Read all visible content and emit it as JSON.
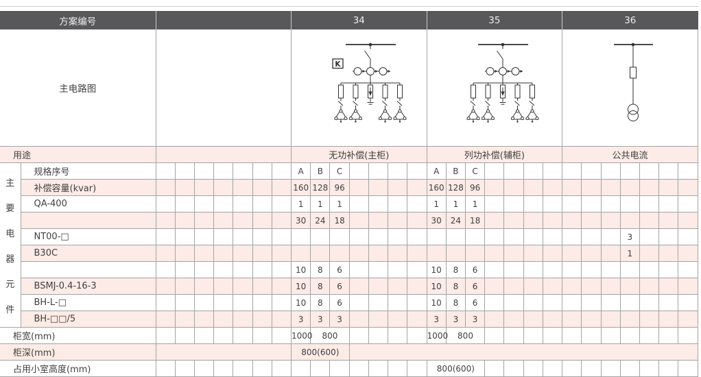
{
  "header": {
    "scheme_no_label": "方案编号",
    "scheme_34": "34",
    "scheme_35": "35",
    "scheme_36": "36"
  },
  "circuit": {
    "label": "主电路图",
    "k_marker": "K"
  },
  "usage": {
    "label": "用途",
    "col34": "无功补偿(主柜)",
    "col35": "列功补偿(辅柜)",
    "col36": "公共电流"
  },
  "side_label_chars": [
    "主",
    "要",
    "电",
    "器",
    "元",
    "件"
  ],
  "body_rows": [
    {
      "label": "规格序号",
      "pink": false,
      "label_colspan": 1,
      "cells": [
        [
          1,
          ""
        ],
        [
          1,
          ""
        ],
        [
          1,
          ""
        ],
        [
          1,
          ""
        ],
        [
          1,
          ""
        ],
        [
          1,
          ""
        ],
        [
          1,
          ""
        ],
        [
          1,
          "A"
        ],
        [
          1,
          "B"
        ],
        [
          1,
          "C"
        ],
        [
          1,
          ""
        ],
        [
          1,
          ""
        ],
        [
          1,
          ""
        ],
        [
          1,
          ""
        ],
        [
          1,
          "A"
        ],
        [
          1,
          "B"
        ],
        [
          1,
          "C"
        ],
        [
          1,
          ""
        ],
        [
          1,
          ""
        ],
        [
          1,
          ""
        ],
        [
          1,
          ""
        ],
        [
          1,
          ""
        ],
        [
          1,
          ""
        ],
        [
          1,
          ""
        ],
        [
          1,
          ""
        ],
        [
          1,
          ""
        ],
        [
          1,
          ""
        ],
        [
          1,
          ""
        ]
      ]
    },
    {
      "label": "补偿容量(kvar)",
      "pink": true,
      "label_colspan": 1,
      "cells": [
        [
          1,
          ""
        ],
        [
          1,
          ""
        ],
        [
          1,
          ""
        ],
        [
          1,
          ""
        ],
        [
          1,
          ""
        ],
        [
          1,
          ""
        ],
        [
          1,
          ""
        ],
        [
          1,
          "160"
        ],
        [
          1,
          "128"
        ],
        [
          1,
          "96"
        ],
        [
          1,
          ""
        ],
        [
          1,
          ""
        ],
        [
          1,
          ""
        ],
        [
          1,
          ""
        ],
        [
          1,
          "160"
        ],
        [
          1,
          "128"
        ],
        [
          1,
          "96"
        ],
        [
          1,
          ""
        ],
        [
          1,
          ""
        ],
        [
          1,
          ""
        ],
        [
          1,
          ""
        ],
        [
          1,
          ""
        ],
        [
          1,
          ""
        ],
        [
          1,
          ""
        ],
        [
          1,
          ""
        ],
        [
          1,
          ""
        ],
        [
          1,
          ""
        ],
        [
          1,
          ""
        ]
      ]
    },
    {
      "label": "QA-400",
      "pink": false,
      "label_colspan": 1,
      "cells": [
        [
          1,
          ""
        ],
        [
          1,
          ""
        ],
        [
          1,
          ""
        ],
        [
          1,
          ""
        ],
        [
          1,
          ""
        ],
        [
          1,
          ""
        ],
        [
          1,
          ""
        ],
        [
          1,
          "1"
        ],
        [
          1,
          "1"
        ],
        [
          1,
          "1"
        ],
        [
          1,
          ""
        ],
        [
          1,
          ""
        ],
        [
          1,
          ""
        ],
        [
          1,
          ""
        ],
        [
          1,
          "1"
        ],
        [
          1,
          "1"
        ],
        [
          1,
          "1"
        ],
        [
          1,
          ""
        ],
        [
          1,
          ""
        ],
        [
          1,
          ""
        ],
        [
          1,
          ""
        ],
        [
          1,
          ""
        ],
        [
          1,
          ""
        ],
        [
          1,
          ""
        ],
        [
          1,
          ""
        ],
        [
          1,
          ""
        ],
        [
          1,
          ""
        ],
        [
          1,
          ""
        ]
      ]
    },
    {
      "label": "",
      "pink": true,
      "label_colspan": 1,
      "cells": [
        [
          1,
          ""
        ],
        [
          1,
          ""
        ],
        [
          1,
          ""
        ],
        [
          1,
          ""
        ],
        [
          1,
          ""
        ],
        [
          1,
          ""
        ],
        [
          1,
          ""
        ],
        [
          1,
          "30"
        ],
        [
          1,
          "24"
        ],
        [
          1,
          "18"
        ],
        [
          1,
          ""
        ],
        [
          1,
          ""
        ],
        [
          1,
          ""
        ],
        [
          1,
          ""
        ],
        [
          1,
          "30"
        ],
        [
          1,
          "24"
        ],
        [
          1,
          "18"
        ],
        [
          1,
          ""
        ],
        [
          1,
          ""
        ],
        [
          1,
          ""
        ],
        [
          1,
          ""
        ],
        [
          1,
          ""
        ],
        [
          1,
          ""
        ],
        [
          1,
          ""
        ],
        [
          1,
          ""
        ],
        [
          1,
          ""
        ],
        [
          1,
          ""
        ],
        [
          1,
          ""
        ]
      ]
    },
    {
      "label": "NT00-□",
      "pink": false,
      "label_colspan": 1,
      "cells": [
        [
          1,
          ""
        ],
        [
          1,
          ""
        ],
        [
          1,
          ""
        ],
        [
          1,
          ""
        ],
        [
          1,
          ""
        ],
        [
          1,
          ""
        ],
        [
          1,
          ""
        ],
        [
          1,
          ""
        ],
        [
          1,
          ""
        ],
        [
          1,
          ""
        ],
        [
          1,
          ""
        ],
        [
          1,
          ""
        ],
        [
          1,
          ""
        ],
        [
          1,
          ""
        ],
        [
          1,
          ""
        ],
        [
          1,
          ""
        ],
        [
          1,
          ""
        ],
        [
          1,
          ""
        ],
        [
          1,
          ""
        ],
        [
          1,
          ""
        ],
        [
          1,
          ""
        ],
        [
          1,
          ""
        ],
        [
          1,
          ""
        ],
        [
          1,
          ""
        ],
        [
          1,
          "3"
        ],
        [
          1,
          ""
        ],
        [
          1,
          ""
        ],
        [
          1,
          ""
        ]
      ]
    },
    {
      "label": "B30C",
      "pink": true,
      "label_colspan": 1,
      "cells": [
        [
          1,
          ""
        ],
        [
          1,
          ""
        ],
        [
          1,
          ""
        ],
        [
          1,
          ""
        ],
        [
          1,
          ""
        ],
        [
          1,
          ""
        ],
        [
          1,
          ""
        ],
        [
          1,
          ""
        ],
        [
          1,
          ""
        ],
        [
          1,
          ""
        ],
        [
          1,
          ""
        ],
        [
          1,
          ""
        ],
        [
          1,
          ""
        ],
        [
          1,
          ""
        ],
        [
          1,
          ""
        ],
        [
          1,
          ""
        ],
        [
          1,
          ""
        ],
        [
          1,
          ""
        ],
        [
          1,
          ""
        ],
        [
          1,
          ""
        ],
        [
          1,
          ""
        ],
        [
          1,
          ""
        ],
        [
          1,
          ""
        ],
        [
          1,
          ""
        ],
        [
          1,
          "1"
        ],
        [
          1,
          ""
        ],
        [
          1,
          ""
        ],
        [
          1,
          ""
        ]
      ]
    },
    {
      "label": "",
      "pink": false,
      "label_colspan": 1,
      "cells": [
        [
          1,
          ""
        ],
        [
          1,
          ""
        ],
        [
          1,
          ""
        ],
        [
          1,
          ""
        ],
        [
          1,
          ""
        ],
        [
          1,
          ""
        ],
        [
          1,
          ""
        ],
        [
          1,
          "10"
        ],
        [
          1,
          "8"
        ],
        [
          1,
          "6"
        ],
        [
          1,
          ""
        ],
        [
          1,
          ""
        ],
        [
          1,
          ""
        ],
        [
          1,
          ""
        ],
        [
          1,
          "10"
        ],
        [
          1,
          "8"
        ],
        [
          1,
          "6"
        ],
        [
          1,
          ""
        ],
        [
          1,
          ""
        ],
        [
          1,
          ""
        ],
        [
          1,
          ""
        ],
        [
          1,
          ""
        ],
        [
          1,
          ""
        ],
        [
          1,
          ""
        ],
        [
          1,
          ""
        ],
        [
          1,
          ""
        ],
        [
          1,
          ""
        ],
        [
          1,
          ""
        ]
      ]
    },
    {
      "label": "BSMJ-0.4-16-3",
      "pink": true,
      "label_colspan": 1,
      "cells": [
        [
          1,
          ""
        ],
        [
          1,
          ""
        ],
        [
          1,
          ""
        ],
        [
          1,
          ""
        ],
        [
          1,
          ""
        ],
        [
          1,
          ""
        ],
        [
          1,
          ""
        ],
        [
          1,
          "10"
        ],
        [
          1,
          "8"
        ],
        [
          1,
          "6"
        ],
        [
          1,
          ""
        ],
        [
          1,
          ""
        ],
        [
          1,
          ""
        ],
        [
          1,
          ""
        ],
        [
          1,
          "10"
        ],
        [
          1,
          "8"
        ],
        [
          1,
          "6"
        ],
        [
          1,
          ""
        ],
        [
          1,
          ""
        ],
        [
          1,
          ""
        ],
        [
          1,
          ""
        ],
        [
          1,
          ""
        ],
        [
          1,
          ""
        ],
        [
          1,
          ""
        ],
        [
          1,
          ""
        ],
        [
          1,
          ""
        ],
        [
          1,
          ""
        ],
        [
          1,
          ""
        ]
      ]
    },
    {
      "label": "BH-L-□",
      "pink": false,
      "label_colspan": 1,
      "cells": [
        [
          1,
          ""
        ],
        [
          1,
          ""
        ],
        [
          1,
          ""
        ],
        [
          1,
          ""
        ],
        [
          1,
          ""
        ],
        [
          1,
          ""
        ],
        [
          1,
          ""
        ],
        [
          1,
          "10"
        ],
        [
          1,
          "8"
        ],
        [
          1,
          "6"
        ],
        [
          1,
          ""
        ],
        [
          1,
          ""
        ],
        [
          1,
          ""
        ],
        [
          1,
          ""
        ],
        [
          1,
          "10"
        ],
        [
          1,
          "8"
        ],
        [
          1,
          "6"
        ],
        [
          1,
          ""
        ],
        [
          1,
          ""
        ],
        [
          1,
          ""
        ],
        [
          1,
          ""
        ],
        [
          1,
          ""
        ],
        [
          1,
          ""
        ],
        [
          1,
          ""
        ],
        [
          1,
          ""
        ],
        [
          1,
          ""
        ],
        [
          1,
          ""
        ],
        [
          1,
          ""
        ]
      ]
    },
    {
      "label": "BH-□□/5",
      "pink": true,
      "label_colspan": 1,
      "cells": [
        [
          1,
          ""
        ],
        [
          1,
          ""
        ],
        [
          1,
          ""
        ],
        [
          1,
          ""
        ],
        [
          1,
          ""
        ],
        [
          1,
          ""
        ],
        [
          1,
          ""
        ],
        [
          1,
          "3"
        ],
        [
          1,
          "3"
        ],
        [
          1,
          "3"
        ],
        [
          1,
          ""
        ],
        [
          1,
          ""
        ],
        [
          1,
          ""
        ],
        [
          1,
          ""
        ],
        [
          1,
          "3"
        ],
        [
          1,
          "3"
        ],
        [
          1,
          "3"
        ],
        [
          1,
          ""
        ],
        [
          1,
          ""
        ],
        [
          1,
          ""
        ],
        [
          1,
          ""
        ],
        [
          1,
          ""
        ],
        [
          1,
          ""
        ],
        [
          1,
          ""
        ],
        [
          1,
          ""
        ],
        [
          1,
          ""
        ],
        [
          1,
          ""
        ],
        [
          1,
          ""
        ]
      ]
    },
    {
      "label": "柜宽(mm)",
      "pink": false,
      "label_colspan": 2,
      "cells": [
        [
          1,
          ""
        ],
        [
          1,
          ""
        ],
        [
          1,
          ""
        ],
        [
          1,
          ""
        ],
        [
          1,
          ""
        ],
        [
          1,
          ""
        ],
        [
          1,
          ""
        ],
        [
          1,
          "1000"
        ],
        [
          2,
          "800"
        ],
        [
          1,
          ""
        ],
        [
          1,
          ""
        ],
        [
          1,
          ""
        ],
        [
          1,
          ""
        ],
        [
          1,
          "1000"
        ],
        [
          2,
          "800"
        ],
        [
          1,
          ""
        ],
        [
          1,
          ""
        ],
        [
          1,
          ""
        ],
        [
          1,
          ""
        ],
        [
          1,
          ""
        ],
        [
          1,
          ""
        ],
        [
          1,
          ""
        ],
        [
          1,
          ""
        ],
        [
          1,
          ""
        ],
        [
          1,
          ""
        ],
        [
          1,
          ""
        ]
      ]
    },
    {
      "label": "柜深(mm)",
      "pink": true,
      "label_colspan": 2,
      "cells": [
        [
          7,
          ""
        ],
        [
          3,
          "800(600)"
        ],
        [
          18,
          ""
        ]
      ]
    },
    {
      "label": "占用小室高度(mm)",
      "pink": false,
      "label_colspan": 2,
      "cells": [
        [
          1,
          ""
        ],
        [
          1,
          ""
        ],
        [
          1,
          ""
        ],
        [
          1,
          ""
        ],
        [
          1,
          ""
        ],
        [
          1,
          ""
        ],
        [
          1,
          ""
        ],
        [
          1,
          ""
        ],
        [
          1,
          ""
        ],
        [
          1,
          ""
        ],
        [
          1,
          ""
        ],
        [
          1,
          ""
        ],
        [
          1,
          ""
        ],
        [
          1,
          ""
        ],
        [
          3,
          "800(600)"
        ],
        [
          1,
          ""
        ],
        [
          1,
          ""
        ],
        [
          1,
          ""
        ],
        [
          1,
          ""
        ],
        [
          1,
          ""
        ],
        [
          1,
          ""
        ],
        [
          1,
          ""
        ],
        [
          1,
          ""
        ],
        [
          1,
          ""
        ],
        [
          1,
          ""
        ],
        [
          1,
          ""
        ]
      ]
    }
  ],
  "colors": {
    "header_bg": "#58585A",
    "pink_row": "#FCEBE6",
    "border": "#A3A3A3",
    "diagram_stroke": "#2F2F2F"
  }
}
